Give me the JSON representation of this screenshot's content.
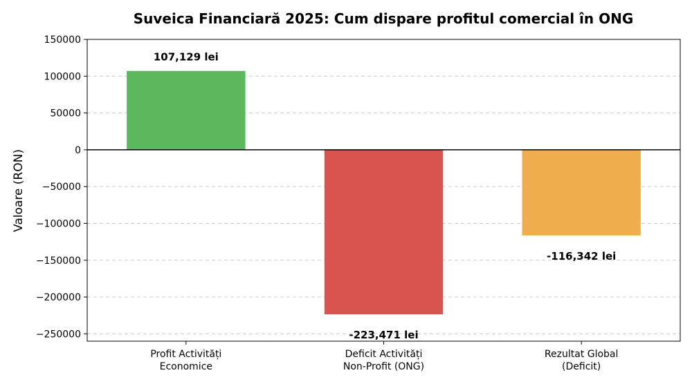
{
  "chart_data": {
    "type": "bar",
    "title": "Suveica Financiară 2025: Cum dispare profitul comercial în ONG",
    "xlabel": "",
    "ylabel": "Valoare (RON)",
    "ylim": [
      -260000,
      150000
    ],
    "yticks": [
      150000,
      100000,
      50000,
      0,
      -50000,
      -100000,
      -150000,
      -200000,
      -250000
    ],
    "ytick_labels": [
      "150000",
      "100000",
      "50000",
      "0",
      "−50000",
      "−100000",
      "−150000",
      "−200000",
      "−250000"
    ],
    "grid": true,
    "categories": [
      [
        "Profit Activități",
        "Economice"
      ],
      [
        "Deficit Activități",
        "Non-Profit (ONG)"
      ],
      [
        "Rezultat Global",
        "(Deficit)"
      ]
    ],
    "values": [
      107129,
      -223471,
      -116342
    ],
    "data_labels": [
      "107,129 lei",
      "-223,471 lei",
      "-116,342 lei"
    ],
    "colors": [
      "#5cb85c",
      "#d9534f",
      "#f0ad4e"
    ]
  }
}
